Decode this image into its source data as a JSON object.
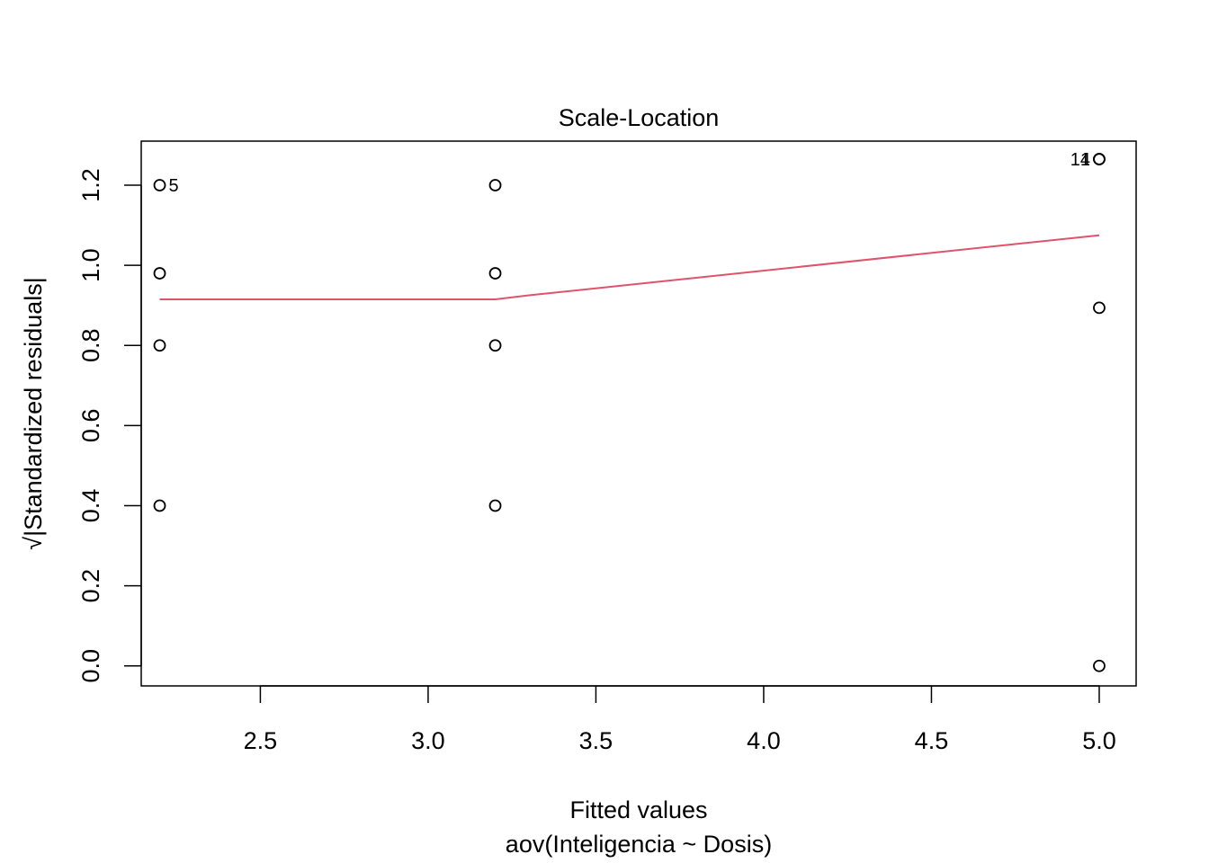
{
  "chart_data": {
    "type": "scatter",
    "title": "Scale-Location",
    "xlabel": "Fitted values",
    "xsublabel": "aov(Inteligencia ~ Dosis)",
    "ylabel": "√|Standardized residuals|",
    "xlim": [
      2.145,
      5.11
    ],
    "ylim": [
      -0.05,
      1.31
    ],
    "xticks": [
      "2.5",
      "3.0",
      "3.5",
      "4.0",
      "4.5",
      "5.0"
    ],
    "xtick_values": [
      2.5,
      3.0,
      3.5,
      4.0,
      4.5,
      5.0
    ],
    "yticks": [
      "0.0",
      "0.2",
      "0.4",
      "0.6",
      "0.8",
      "1.0",
      "1.2"
    ],
    "ytick_values": [
      0.0,
      0.2,
      0.4,
      0.6,
      0.8,
      1.0,
      1.2
    ],
    "grid": false,
    "points": [
      {
        "x": 2.2,
        "y": 1.2,
        "label": "5"
      },
      {
        "x": 2.2,
        "y": 0.98,
        "label": ""
      },
      {
        "x": 2.2,
        "y": 0.8,
        "label": ""
      },
      {
        "x": 2.2,
        "y": 0.4,
        "label": ""
      },
      {
        "x": 3.2,
        "y": 1.2,
        "label": ""
      },
      {
        "x": 3.2,
        "y": 0.98,
        "label": ""
      },
      {
        "x": 3.2,
        "y": 0.8,
        "label": ""
      },
      {
        "x": 3.2,
        "y": 0.4,
        "label": ""
      },
      {
        "x": 5.0,
        "y": 1.265,
        "label": "14"
      },
      {
        "x": 5.0,
        "y": 1.265,
        "label": "1"
      },
      {
        "x": 5.0,
        "y": 0.894,
        "label": ""
      },
      {
        "x": 5.0,
        "y": 0.0,
        "label": ""
      }
    ],
    "smooth_line": {
      "x": [
        2.2,
        3.2,
        3.3,
        5.0
      ],
      "y": [
        0.915,
        0.915,
        0.925,
        1.075
      ],
      "color": "#DF536B"
    },
    "point_color": "#000000"
  }
}
